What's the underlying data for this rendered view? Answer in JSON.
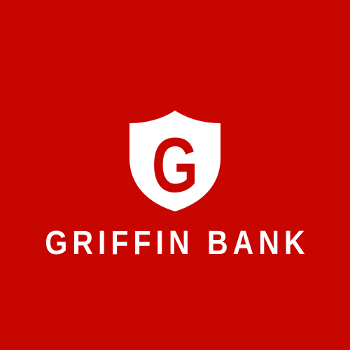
{
  "logo": {
    "monogram": "G",
    "name": "GRIFFIN BANK"
  },
  "colors": {
    "background": "#c80600",
    "foreground": "#ffffff"
  },
  "icons": {
    "emblem": "shield-icon"
  }
}
